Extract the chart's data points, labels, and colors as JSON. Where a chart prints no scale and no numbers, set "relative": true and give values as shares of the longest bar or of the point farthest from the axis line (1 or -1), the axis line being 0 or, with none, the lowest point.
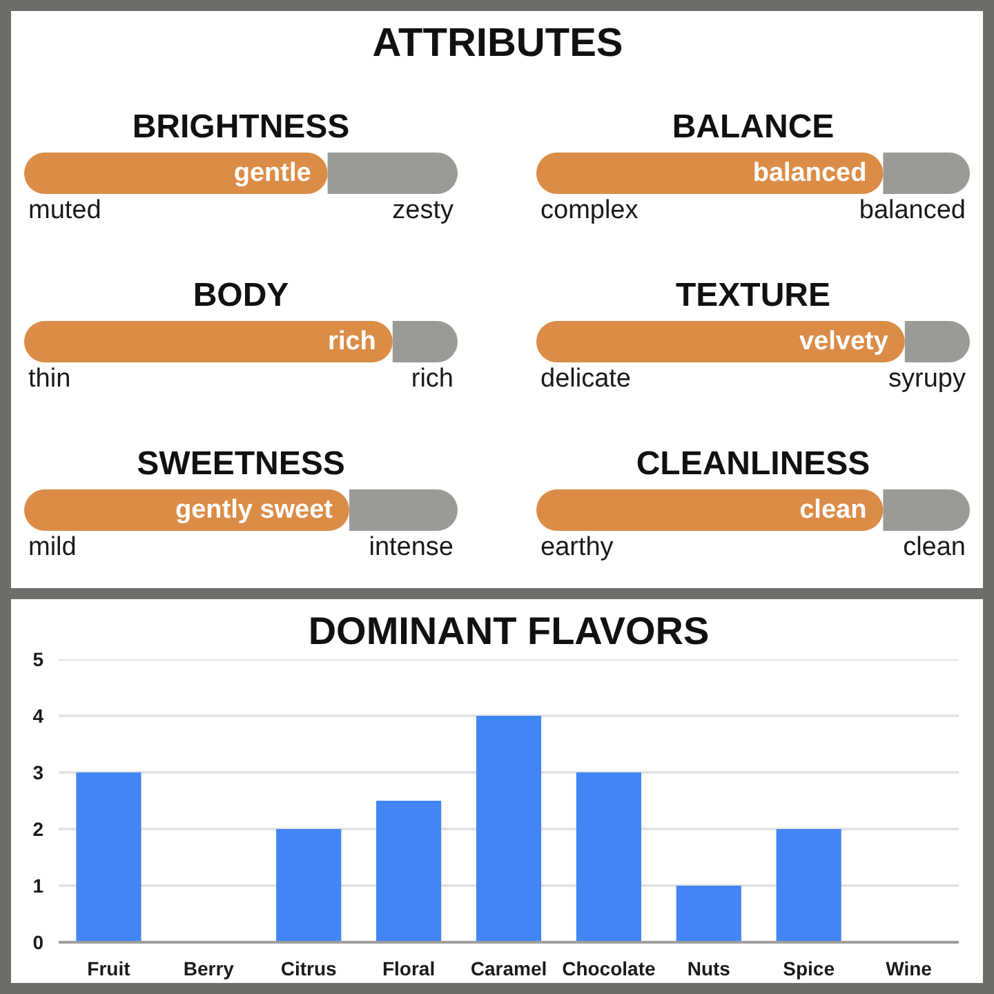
{
  "chart_data": [
    {
      "type": "other",
      "title": "ATTRIBUTES"
    },
    {
      "type": "bar",
      "orientation": "horizontal",
      "stacked": true,
      "relative": true,
      "title": "BRIGHTNESS",
      "categories": [
        null
      ],
      "annotations": [
        "muted",
        "zesty",
        {
          "text": "gentle",
          "x": 0.7
        }
      ],
      "series": [
        {
          "color": "#db8c46",
          "values": [
            0.7
          ]
        },
        {
          "color": "#9a9b97",
          "values": [
            0.3
          ]
        }
      ]
    },
    {
      "type": "bar",
      "orientation": "horizontal",
      "stacked": true,
      "relative": true,
      "title": "BALANCE",
      "categories": [
        null
      ],
      "annotations": [
        "complex",
        "balanced",
        {
          "text": "balanced",
          "x": 0.8
        }
      ],
      "series": [
        {
          "color": "#db8c46",
          "values": [
            0.8
          ]
        },
        {
          "color": "#9a9b97",
          "values": [
            0.2
          ]
        }
      ]
    },
    {
      "type": "bar",
      "orientation": "horizontal",
      "stacked": true,
      "relative": true,
      "title": "BODY",
      "categories": [
        null
      ],
      "annotations": [
        "thin",
        "rich",
        {
          "text": "rich",
          "x": 0.85
        }
      ],
      "series": [
        {
          "color": "#db8c46",
          "values": [
            0.85
          ]
        },
        {
          "color": "#9a9b97",
          "values": [
            0.15
          ]
        }
      ]
    },
    {
      "type": "bar",
      "orientation": "horizontal",
      "stacked": true,
      "relative": true,
      "title": "TEXTURE",
      "categories": [
        null
      ],
      "annotations": [
        "delicate",
        "syrupy",
        {
          "text": "velvety",
          "x": 0.85
        }
      ],
      "series": [
        {
          "color": "#db8c46",
          "values": [
            0.85
          ]
        },
        {
          "color": "#9a9b97",
          "values": [
            0.15
          ]
        }
      ]
    },
    {
      "type": "bar",
      "orientation": "horizontal",
      "stacked": true,
      "relative": true,
      "title": "SWEETNESS",
      "categories": [
        null
      ],
      "annotations": [
        "mild",
        "intense",
        {
          "text": "gently sweet",
          "x": 0.75
        }
      ],
      "series": [
        {
          "color": "#db8c46",
          "values": [
            0.75
          ]
        },
        {
          "color": "#9a9b97",
          "values": [
            0.25
          ]
        }
      ]
    },
    {
      "type": "bar",
      "orientation": "horizontal",
      "stacked": true,
      "relative": true,
      "title": "CLEANLINESS",
      "categories": [
        null
      ],
      "annotations": [
        "earthy",
        "clean",
        {
          "text": "clean",
          "x": 0.8
        }
      ],
      "series": [
        {
          "color": "#db8c46",
          "values": [
            0.8
          ]
        },
        {
          "color": "#9a9b97",
          "values": [
            0.2
          ]
        }
      ]
    },
    {
      "type": "bar",
      "title": "DOMINANT FLAVORS",
      "categories": [
        "Fruit",
        "Berry",
        "Citrus",
        "Floral",
        "Caramel",
        "Chocolate",
        "Nuts",
        "Spice",
        "Wine"
      ],
      "values": [
        3,
        0,
        2,
        2.5,
        4,
        3,
        1,
        2,
        0
      ],
      "color": "#4285f4",
      "ylim": [
        0,
        5
      ],
      "yticks": [
        0,
        1,
        2,
        3,
        4,
        5
      ],
      "grid": "y"
    }
  ]
}
